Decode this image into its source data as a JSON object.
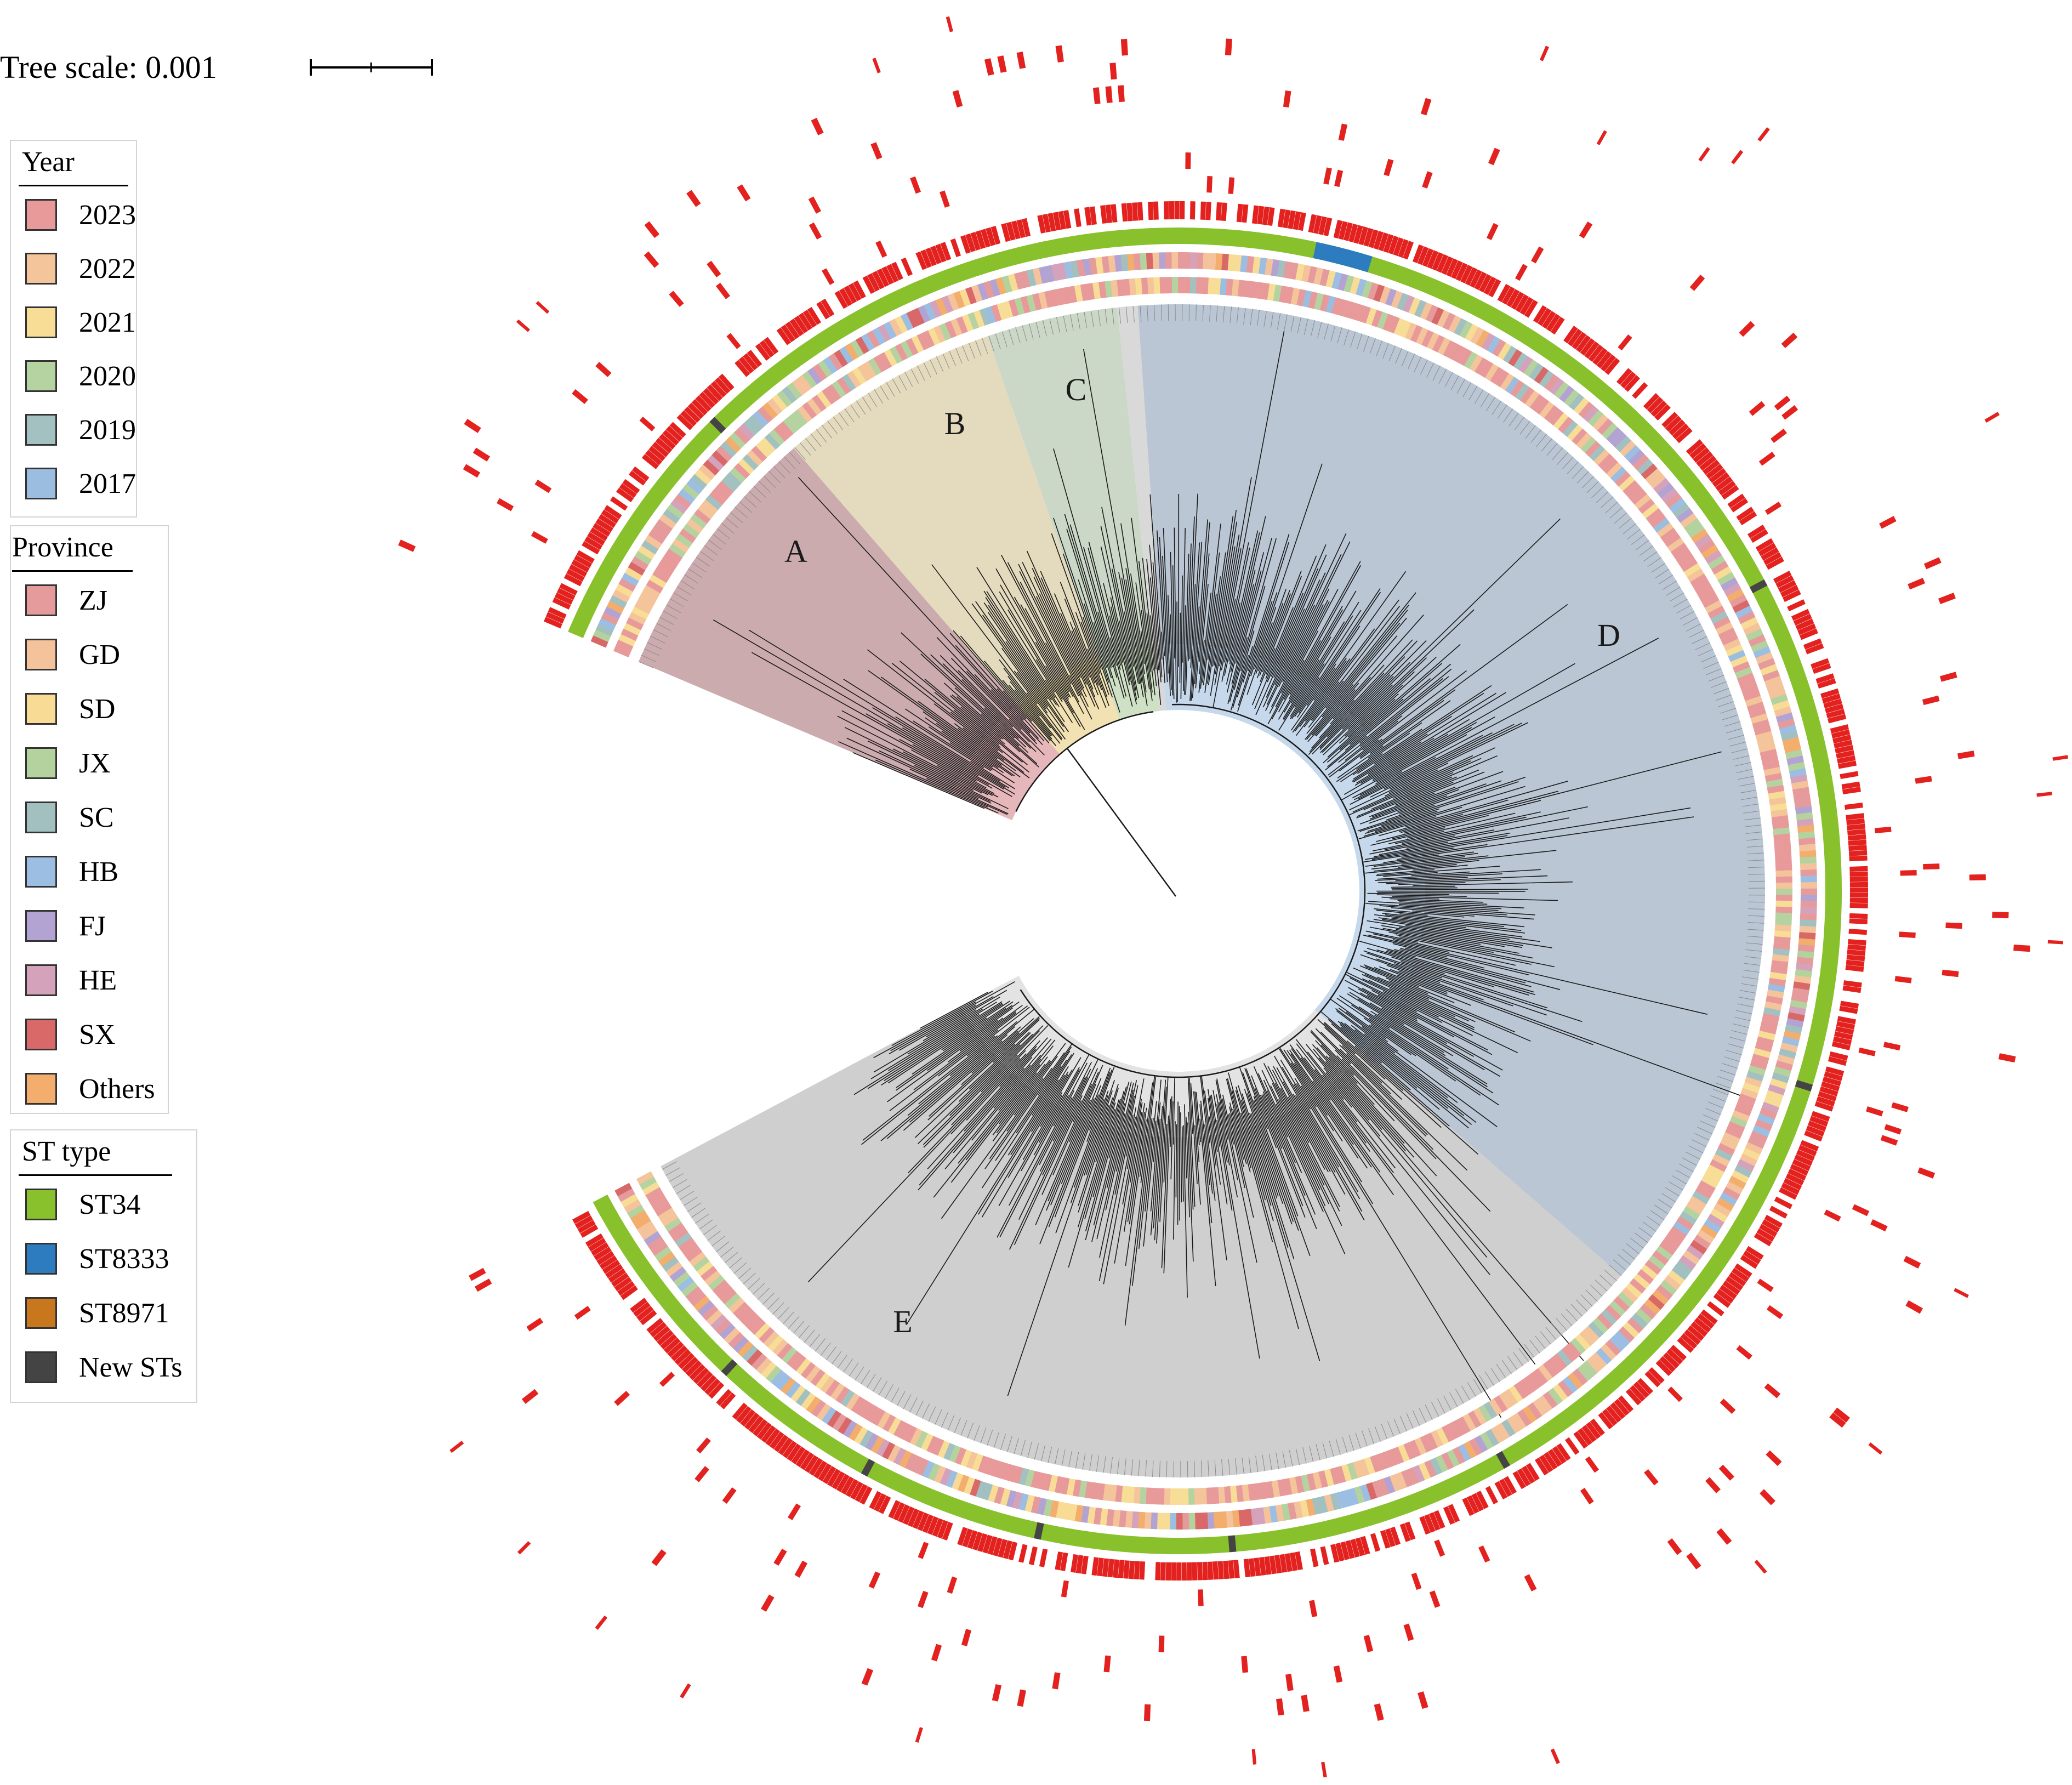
{
  "tree_scale": {
    "label": "Tree scale: 0.001"
  },
  "legends": {
    "year": {
      "title": "Year",
      "items": [
        {
          "label": "2023",
          "color": "#e89a9a"
        },
        {
          "label": "2022",
          "color": "#f4c49a"
        },
        {
          "label": "2021",
          "color": "#f8dd96"
        },
        {
          "label": "2020",
          "color": "#b5d3a0"
        },
        {
          "label": "2019",
          "color": "#a2c1c0"
        },
        {
          "label": "2017",
          "color": "#9bbde0"
        }
      ]
    },
    "province": {
      "title": "Province",
      "items": [
        {
          "label": "ZJ",
          "color": "#e59b9b"
        },
        {
          "label": "GD",
          "color": "#f4c39c"
        },
        {
          "label": "SD",
          "color": "#f8dc95"
        },
        {
          "label": "JX",
          "color": "#b4d29d"
        },
        {
          "label": "SC",
          "color": "#a2c0c0"
        },
        {
          "label": "HB",
          "color": "#9cbee2"
        },
        {
          "label": "FJ",
          "color": "#b3a3d3"
        },
        {
          "label": "HE",
          "color": "#d5a2bb"
        },
        {
          "label": "SX",
          "color": "#d96868"
        },
        {
          "label": "Others",
          "color": "#f3ad6c"
        }
      ]
    },
    "st_type": {
      "title": "ST type",
      "items": [
        {
          "label": "ST34",
          "color": "#88c12b"
        },
        {
          "label": "ST8333",
          "color": "#2d7cc0"
        },
        {
          "label": "ST8971",
          "color": "#c8771c"
        },
        {
          "label": "New STs",
          "color": "#444444"
        }
      ]
    }
  },
  "clades": [
    {
      "label": "A",
      "color": "#b98a90"
    },
    {
      "label": "B",
      "color": "#d9cca4"
    },
    {
      "label": "C",
      "color": "#b9c9b2"
    },
    {
      "label": "D",
      "color": "#9fb0c4"
    },
    {
      "label": "E",
      "color": "#bdbdbd"
    }
  ],
  "colors": {
    "st34_ring": "#88c12b",
    "gene_mark": "#e3221f",
    "branch": "#1a1a1a"
  }
}
